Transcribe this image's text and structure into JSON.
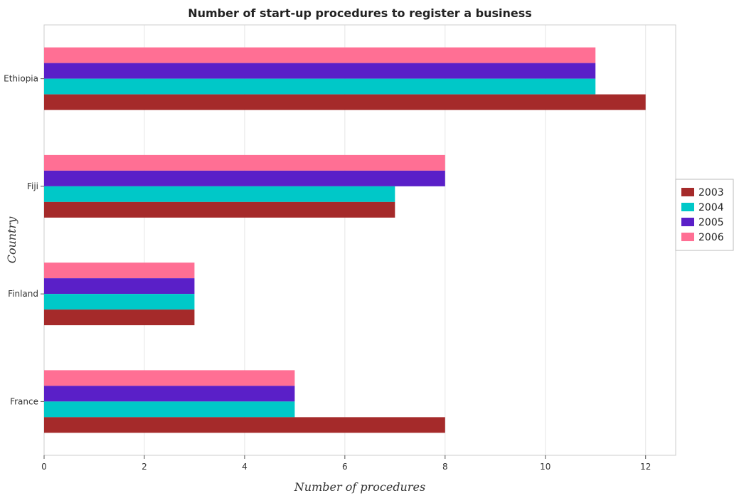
{
  "chart_data": {
    "type": "bar",
    "orientation": "horizontal",
    "title": "Number of start-up procedures to register a business",
    "xlabel": "Number of procedures",
    "ylabel": "Country",
    "categories": [
      "Ethiopia",
      "Fiji",
      "Finland",
      "France"
    ],
    "series": [
      {
        "name": "2003",
        "color": "#a52a2a",
        "values": [
          12,
          7,
          3,
          8
        ]
      },
      {
        "name": "2004",
        "color": "#00c8c8",
        "values": [
          11,
          7,
          3,
          5
        ]
      },
      {
        "name": "2005",
        "color": "#5a1fc8",
        "values": [
          11,
          8,
          3,
          5
        ]
      },
      {
        "name": "2006",
        "color": "#ff6f94",
        "values": [
          11,
          8,
          3,
          5
        ]
      }
    ],
    "xlim": [
      0,
      12.6
    ],
    "xticks": [
      0,
      2,
      4,
      6,
      8,
      10,
      12
    ],
    "grid": true,
    "legend_position": "right"
  }
}
